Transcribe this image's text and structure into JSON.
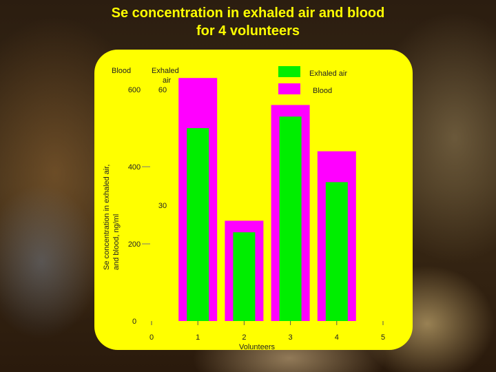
{
  "title_lines": [
    "Se concentration in exhaled air and blood",
    "for 4 volunteers"
  ],
  "colors": {
    "exhaled": "#00ee00",
    "blood": "#ff00ff",
    "panel": "#ffff00",
    "title": "#ffff00"
  },
  "chart_data": {
    "type": "bar",
    "x_axis": {
      "label": "Volunteers",
      "ticks": [
        "0",
        "1",
        "2",
        "3",
        "4",
        "5"
      ],
      "range": [
        0,
        5
      ]
    },
    "blood_axis": {
      "header": "Blood",
      "ticks": [
        "0",
        "200",
        "400",
        "600"
      ],
      "range": [
        0,
        600
      ]
    },
    "air_axis": {
      "header_lines": [
        "Exhaled",
        "air"
      ],
      "ticks": [
        "30",
        "60"
      ],
      "range": [
        0,
        60
      ]
    },
    "y_title_lines": [
      "Se concentration in exhaled air,",
      "and blood, ng/ml"
    ],
    "legend": [
      "Exhaled air",
      "Blood"
    ],
    "categories": [
      "1",
      "2",
      "3",
      "4"
    ],
    "series": [
      {
        "name": "Exhaled air",
        "axis": "air",
        "values": [
          50,
          23,
          53,
          36
        ]
      },
      {
        "name": "Blood",
        "axis": "blood",
        "values": [
          630,
          260,
          560,
          440
        ]
      }
    ],
    "grid": false,
    "legend_position": "top-right"
  }
}
